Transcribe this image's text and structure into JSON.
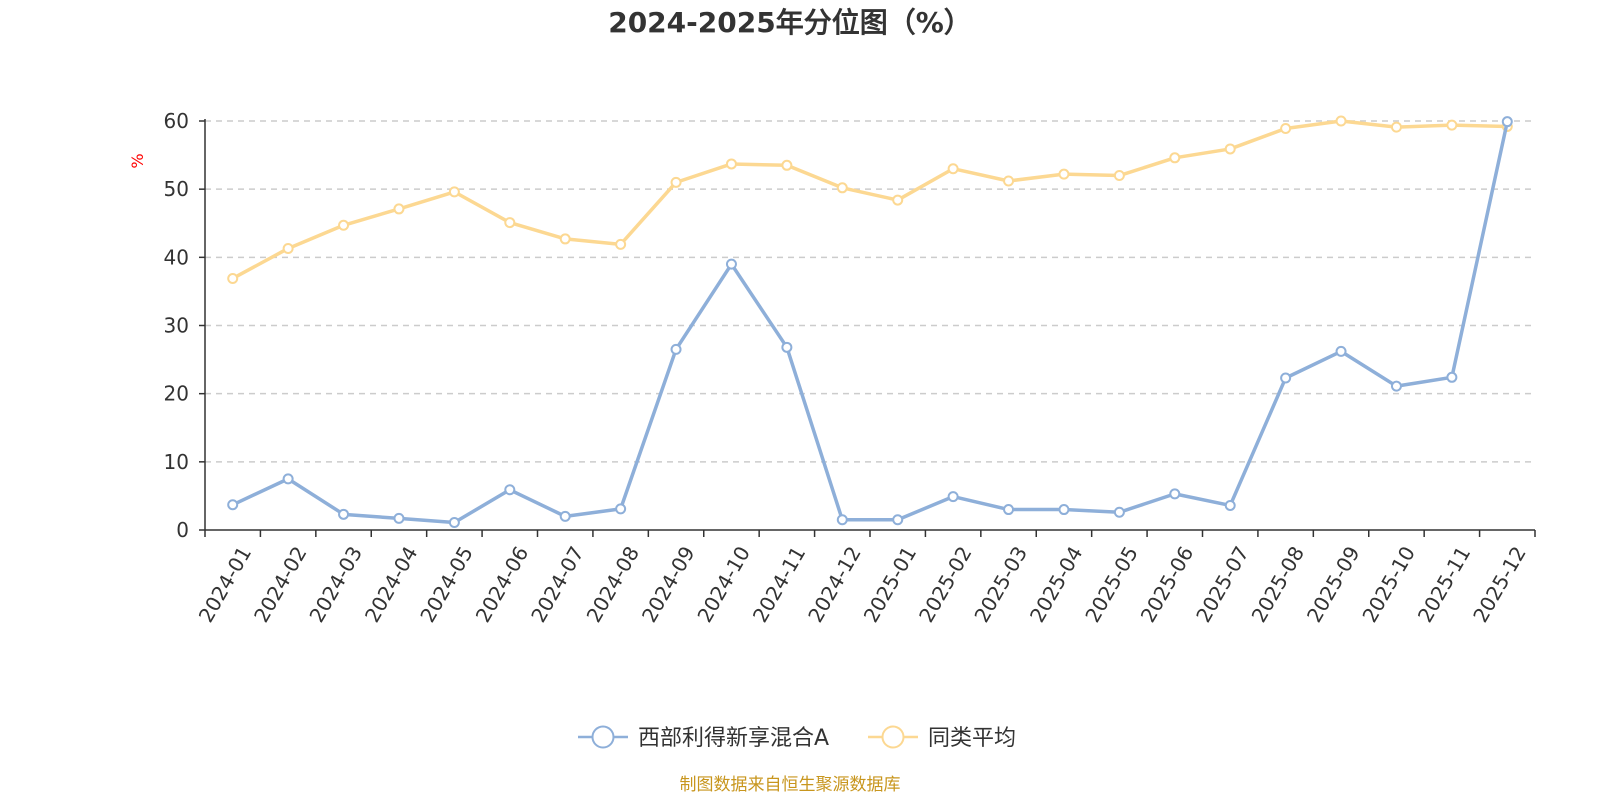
{
  "chart_data": {
    "type": "line",
    "title": "2024-2025年分位图（%）",
    "ylabel": "%",
    "xlabel": "",
    "ylim": [
      0,
      60
    ],
    "yticks": [
      0,
      10,
      20,
      30,
      40,
      50,
      60
    ],
    "grid": true,
    "legend_position": "bottom",
    "categories": [
      "2024-01",
      "2024-02",
      "2024-03",
      "2024-04",
      "2024-05",
      "2024-06",
      "2024-07",
      "2024-08",
      "2024-09",
      "2024-10",
      "2024-11",
      "2024-12",
      "2025-01",
      "2025-02",
      "2025-03",
      "2025-04",
      "2025-05",
      "2025-06",
      "2025-07",
      "2025-08",
      "2025-09",
      "2025-10",
      "2025-11",
      "2025-12"
    ],
    "series": [
      {
        "name": "西部利得新享混合A",
        "color": "#8eafd9",
        "values": [
          3.7,
          7.5,
          2.3,
          1.7,
          1.1,
          5.9,
          2.0,
          3.1,
          26.5,
          39.0,
          26.8,
          1.5,
          1.5,
          4.9,
          3.0,
          3.0,
          2.6,
          5.3,
          3.6,
          22.3,
          26.2,
          21.1,
          22.4,
          59.9
        ]
      },
      {
        "name": "同类平均",
        "color": "#fcd892",
        "values": [
          36.9,
          41.3,
          44.7,
          47.1,
          49.6,
          45.1,
          42.7,
          41.9,
          51.0,
          53.7,
          53.5,
          50.2,
          48.4,
          53.0,
          51.2,
          52.2,
          52.0,
          54.6,
          55.9,
          58.9,
          60.0,
          59.1,
          59.4,
          59.2
        ]
      }
    ],
    "source_note": "制图数据来自恒生聚源数据库"
  }
}
